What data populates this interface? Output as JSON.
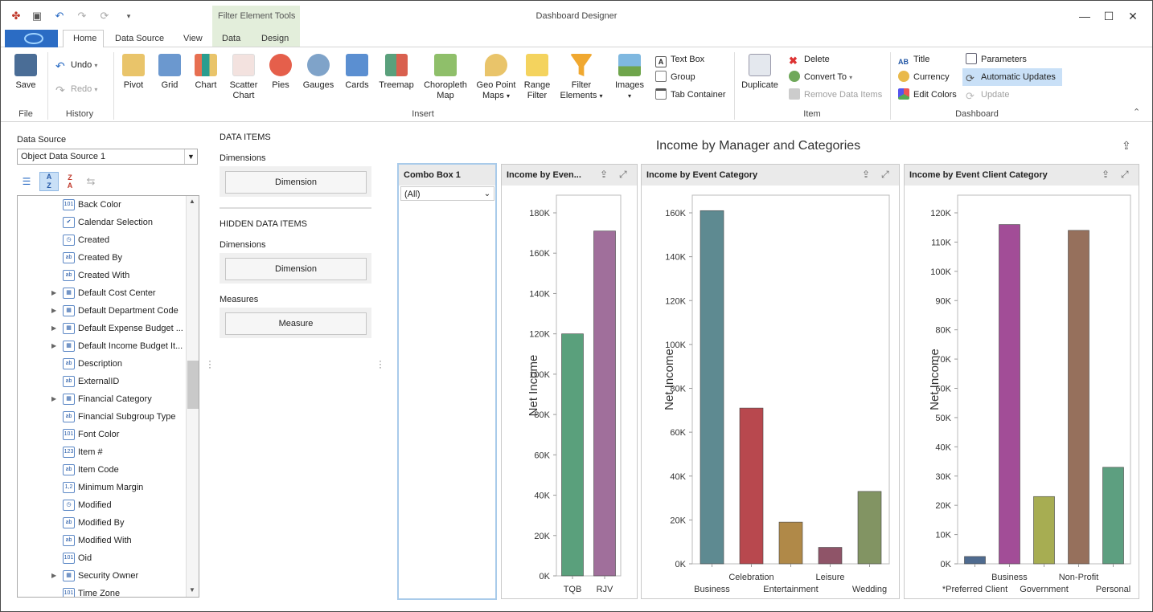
{
  "window": {
    "title": "Dashboard Designer"
  },
  "context_tab_group": "Filter Element Tools",
  "tabs": [
    {
      "label": "Home"
    },
    {
      "label": "Data Source"
    },
    {
      "label": "View"
    },
    {
      "label": "Data"
    },
    {
      "label": "Design"
    }
  ],
  "ribbon": {
    "file": {
      "save": "Save",
      "group": "File"
    },
    "history": {
      "undo": "Undo",
      "redo": "Redo",
      "group": "History"
    },
    "insert": {
      "group": "Insert",
      "pivot": "Pivot",
      "grid": "Grid",
      "chart": "Chart",
      "scatter1": "Scatter",
      "scatter2": "Chart",
      "pies": "Pies",
      "gauges": "Gauges",
      "cards": "Cards",
      "treemap": "Treemap",
      "choro1": "Choropleth",
      "choro2": "Map",
      "geo1": "Geo Point",
      "geo2": "Maps",
      "range1": "Range",
      "range2": "Filter",
      "filter1": "Filter",
      "filter2": "Elements",
      "images": "Images",
      "textbox": "Text Box",
      "group_btn": "Group",
      "tabcontainer": "Tab Container"
    },
    "item": {
      "group": "Item",
      "duplicate": "Duplicate",
      "delete": "Delete",
      "convert": "Convert To",
      "remove": "Remove Data Items"
    },
    "dashboard": {
      "group": "Dashboard",
      "title": "Title",
      "currency": "Currency",
      "edit_colors": "Edit Colors",
      "parameters": "Parameters",
      "auto_updates": "Automatic Updates",
      "update": "Update"
    }
  },
  "data_source": {
    "label": "Data Source",
    "selected": "Object Data Source 1",
    "fields": [
      {
        "name": "Back Color",
        "icon": "101",
        "expand": false
      },
      {
        "name": "Calendar Selection",
        "icon": "check",
        "expand": false
      },
      {
        "name": "Created",
        "icon": "clock",
        "expand": false
      },
      {
        "name": "Created By",
        "icon": "ab",
        "expand": false
      },
      {
        "name": "Created With",
        "icon": "ab",
        "expand": false
      },
      {
        "name": "Default Cost Center",
        "icon": "table",
        "expand": true
      },
      {
        "name": "Default Department Code",
        "icon": "table",
        "expand": true
      },
      {
        "name": "Default Expense Budget ...",
        "icon": "table",
        "expand": true
      },
      {
        "name": "Default Income Budget It...",
        "icon": "table",
        "expand": true
      },
      {
        "name": "Description",
        "icon": "ab",
        "expand": false
      },
      {
        "name": "ExternalID",
        "icon": "ab",
        "expand": false
      },
      {
        "name": "Financial Category",
        "icon": "table",
        "expand": true
      },
      {
        "name": "Financial Subgroup Type",
        "icon": "ab",
        "expand": false
      },
      {
        "name": "Font Color",
        "icon": "101",
        "expand": false
      },
      {
        "name": "Item #",
        "icon": "123",
        "expand": false
      },
      {
        "name": "Item Code",
        "icon": "ab",
        "expand": false
      },
      {
        "name": "Minimum Margin",
        "icon": "1,2",
        "expand": false
      },
      {
        "name": "Modified",
        "icon": "clock",
        "expand": false
      },
      {
        "name": "Modified By",
        "icon": "ab",
        "expand": false
      },
      {
        "name": "Modified With",
        "icon": "ab",
        "expand": false
      },
      {
        "name": "Oid",
        "icon": "101",
        "expand": false
      },
      {
        "name": "Security Owner",
        "icon": "table",
        "expand": true
      },
      {
        "name": "Time Zone",
        "icon": "101",
        "expand": false
      }
    ]
  },
  "data_items": {
    "title": "DATA ITEMS",
    "dimensions_label": "Dimensions",
    "dimension_btn": "Dimension",
    "hidden_title": "HIDDEN DATA ITEMS",
    "hidden_dimensions_label": "Dimensions",
    "hidden_dimension_btn": "Dimension",
    "measures_label": "Measures",
    "measure_btn": "Measure"
  },
  "dashboard": {
    "title": "Income by Manager and Categories",
    "combo": {
      "title": "Combo Box 1",
      "value": "(All)"
    },
    "charts": [
      {
        "title": "Income by Even..."
      },
      {
        "title": "Income by Event Category"
      },
      {
        "title": "Income by Event Client Category"
      }
    ]
  },
  "chart_data": [
    {
      "type": "bar",
      "title": "Income by Even...",
      "ylabel": "Net Income",
      "categories": [
        "TQB",
        "RJV"
      ],
      "values": [
        120000,
        171000
      ],
      "colors": [
        "#5aa07c",
        "#a06f9b"
      ],
      "yticks": [
        "0K",
        "20K",
        "40K",
        "60K",
        "80K",
        "100K",
        "120K",
        "140K",
        "160K",
        "180K"
      ],
      "ylim": [
        0,
        180000
      ]
    },
    {
      "type": "bar",
      "title": "Income by Event Category",
      "ylabel": "Net Income",
      "categories": [
        "Business",
        "Celebration",
        "Entertainment",
        "Leisure",
        "Wedding"
      ],
      "values": [
        161000,
        71000,
        19000,
        7500,
        33000
      ],
      "colors": [
        "#5e8a91",
        "#b8484e",
        "#b08948",
        "#8f5468",
        "#829463"
      ],
      "yticks": [
        "0K",
        "20K",
        "40K",
        "60K",
        "80K",
        "100K",
        "120K",
        "140K",
        "160K"
      ],
      "ylim": [
        0,
        160000
      ]
    },
    {
      "type": "bar",
      "title": "Income by Event Client Category",
      "ylabel": "Net Income",
      "categories": [
        "*Preferred Client",
        "Business",
        "Government",
        "Non-Profit",
        "Personal"
      ],
      "values": [
        2500,
        116000,
        23000,
        114000,
        33000
      ],
      "colors": [
        "#4f6b8f",
        "#a24d97",
        "#a7ad52",
        "#96705c",
        "#5d9f80"
      ],
      "yticks": [
        "0K",
        "10K",
        "20K",
        "30K",
        "40K",
        "50K",
        "60K",
        "70K",
        "80K",
        "90K",
        "100K",
        "110K",
        "120K"
      ],
      "ylim": [
        0,
        120000
      ]
    }
  ]
}
